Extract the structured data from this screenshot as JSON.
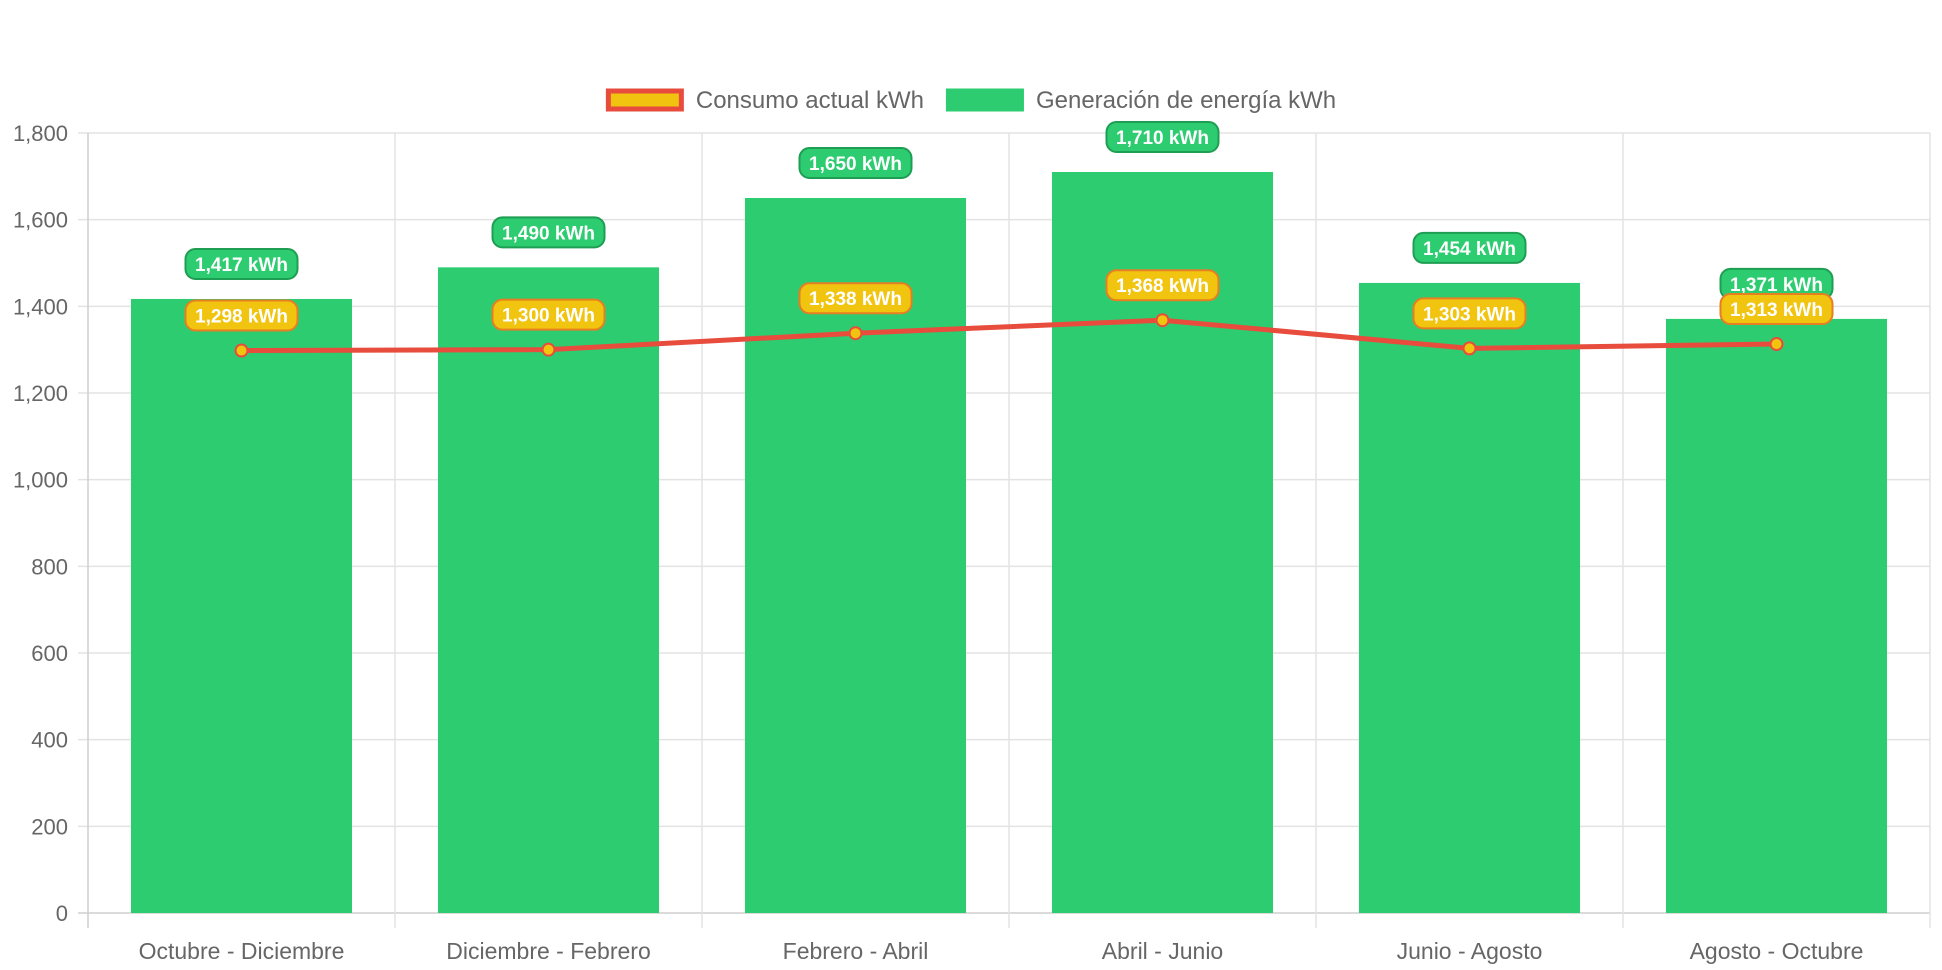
{
  "chart_data": {
    "type": "bar",
    "categories": [
      "Octubre - Diciembre",
      "Diciembre - Febrero",
      "Febrero - Abril",
      "Abril - Junio",
      "Junio - Agosto",
      "Agosto - Octubre"
    ],
    "series": [
      {
        "name": "Consumo actual kWh",
        "type": "line",
        "values": [
          1298,
          1300,
          1338,
          1368,
          1303,
          1313
        ],
        "labels": [
          "1,298 kWh",
          "1,300 kWh",
          "1,338 kWh",
          "1,368 kWh",
          "1,303 kWh",
          "1,313 kWh"
        ],
        "color": "#e74c3c",
        "point_color": "#f1c40f"
      },
      {
        "name": "Generación de energía kWh",
        "type": "bar",
        "values": [
          1417,
          1490,
          1650,
          1710,
          1454,
          1371
        ],
        "labels": [
          "1,417 kWh",
          "1,490 kWh",
          "1,650 kWh",
          "1,710 kWh",
          "1,454 kWh",
          "1,371 kWh"
        ],
        "color": "#2ecc71"
      }
    ],
    "yticks": [
      "0",
      "200",
      "400",
      "600",
      "800",
      "1,000",
      "1,200",
      "1,400",
      "1,600",
      "1,800"
    ],
    "ylim": [
      0,
      1800
    ],
    "grid": true,
    "legend_position": "top-center",
    "xlabel": "",
    "ylabel": "",
    "title": ""
  }
}
